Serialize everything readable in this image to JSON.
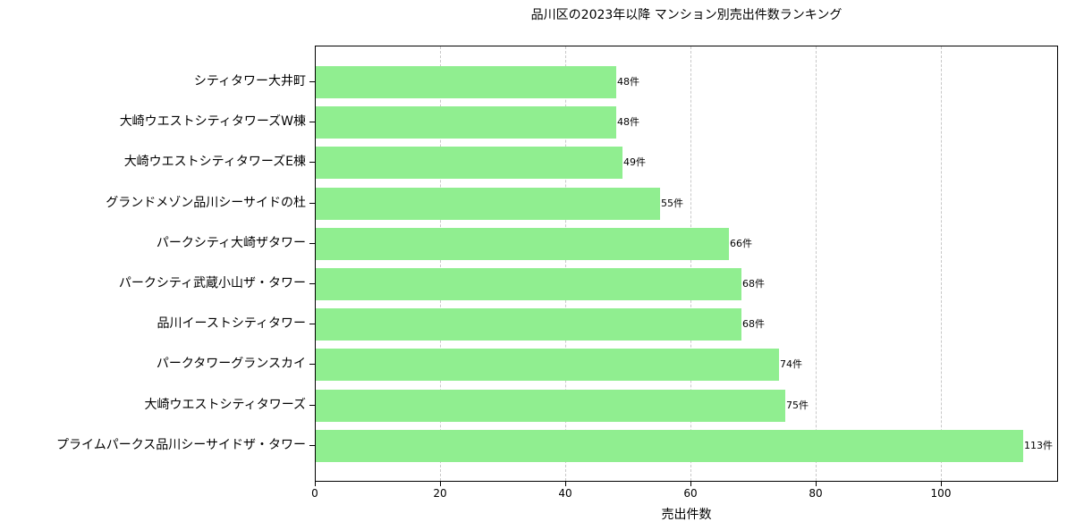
{
  "chart_data": {
    "type": "bar",
    "orientation": "horizontal",
    "title": "品川区の2023年以降 マンション別売出件数ランキング",
    "xlabel": "売出件数",
    "ylabel": "",
    "xlim": [
      0,
      118.65
    ],
    "xticks": [
      0,
      20,
      40,
      60,
      80,
      100
    ],
    "grid": {
      "x": true,
      "y": false,
      "style": "dashed"
    },
    "bar_color": "#90ee90",
    "value_suffix": "件",
    "categories": [
      "シティタワー大井町",
      "大崎ウエストシティタワーズW棟",
      "大崎ウエストシティタワーズE棟",
      "グランドメゾン品川シーサイドの杜",
      "パークシティ大崎ザタワー",
      "パークシティ武蔵小山ザ・タワー",
      "品川イーストシティタワー",
      "パークタワーグランスカイ",
      "大崎ウエストシティタワーズ",
      "プライムパークス品川シーサイドザ・タワー"
    ],
    "values": [
      48,
      48,
      49,
      55,
      66,
      68,
      68,
      74,
      75,
      113
    ],
    "value_labels": [
      "48件",
      "48件",
      "49件",
      "55件",
      "66件",
      "68件",
      "68件",
      "74件",
      "75件",
      "113件"
    ]
  }
}
